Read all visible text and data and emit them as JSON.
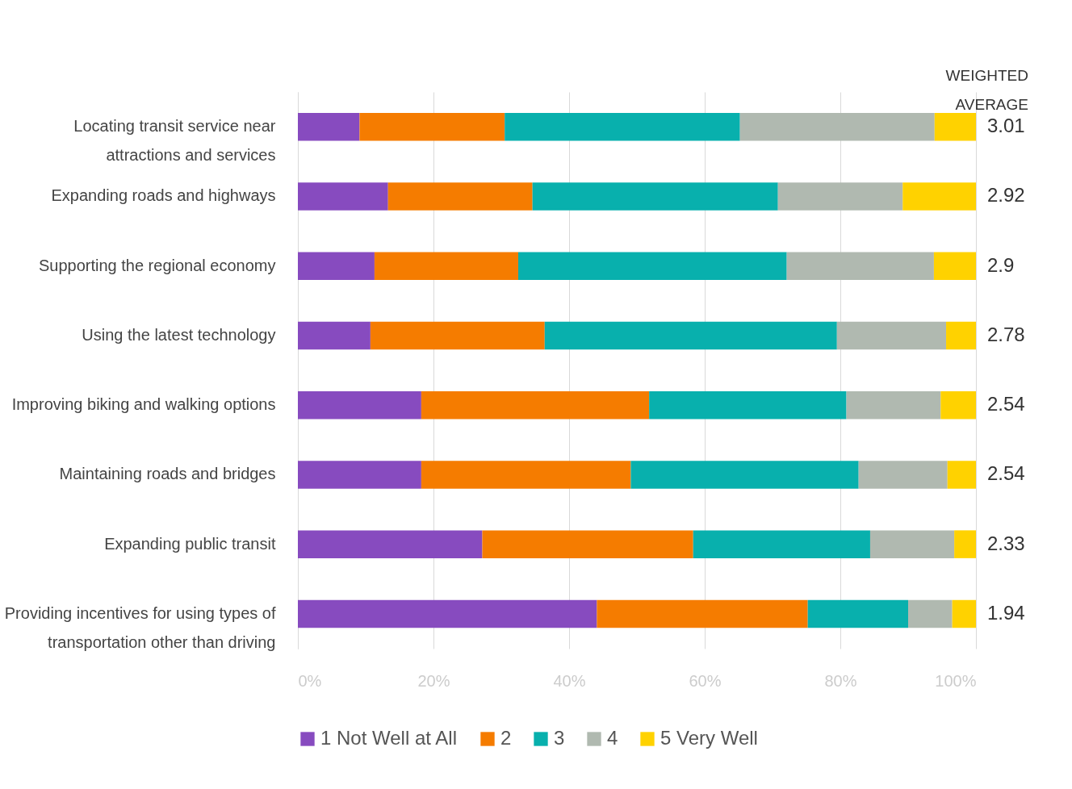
{
  "chart_data": {
    "type": "bar",
    "orientation": "horizontal",
    "stacked": true,
    "categories": [
      "Locating transit service near attractions and services",
      "Expanding roads and highways",
      "Supporting the regional economy",
      "Using the latest technology",
      "Improving biking and walking options",
      "Maintaining roads and bridges",
      "Expanding public transit",
      "Providing incentives for using types of transportation other than driving"
    ],
    "series": [
      {
        "name": "1 Not Well at All",
        "color": "#874bbf",
        "values": [
          9.1,
          13.3,
          11.3,
          10.7,
          18.2,
          18.2,
          27.2,
          44.1
        ]
      },
      {
        "name": "2",
        "color": "#f57c00",
        "values": [
          21.4,
          21.3,
          21.2,
          25.7,
          33.6,
          30.9,
          31.1,
          31.1
        ]
      },
      {
        "name": "3",
        "color": "#08b0ad",
        "values": [
          34.7,
          36.2,
          39.6,
          43.1,
          29.1,
          33.6,
          26.1,
          14.8
        ]
      },
      {
        "name": "4",
        "color": "#b0b9b0",
        "values": [
          28.7,
          18.4,
          21.7,
          16.1,
          13.9,
          13.1,
          12.4,
          6.5
        ]
      },
      {
        "name": "5 Very Well",
        "color": "#ffd200",
        "values": [
          6.1,
          10.8,
          6.2,
          4.4,
          5.2,
          4.2,
          3.2,
          3.5
        ]
      }
    ],
    "xlim": [
      0,
      100
    ],
    "xticks": [
      {
        "value": 0,
        "label": "0%"
      },
      {
        "value": 20,
        "label": "20%"
      },
      {
        "value": 40,
        "label": "40%"
      },
      {
        "value": 60,
        "label": "60%"
      },
      {
        "value": 80,
        "label": "80%"
      },
      {
        "value": 100,
        "label": "100%"
      }
    ],
    "grid": "x",
    "legend": "bottom",
    "annotations": [
      "WEIGHTED AVERAGE",
      "3.01",
      "2.92",
      "2.9",
      "2.78",
      "2.54",
      "2.54",
      "2.33",
      "1.94"
    ]
  }
}
